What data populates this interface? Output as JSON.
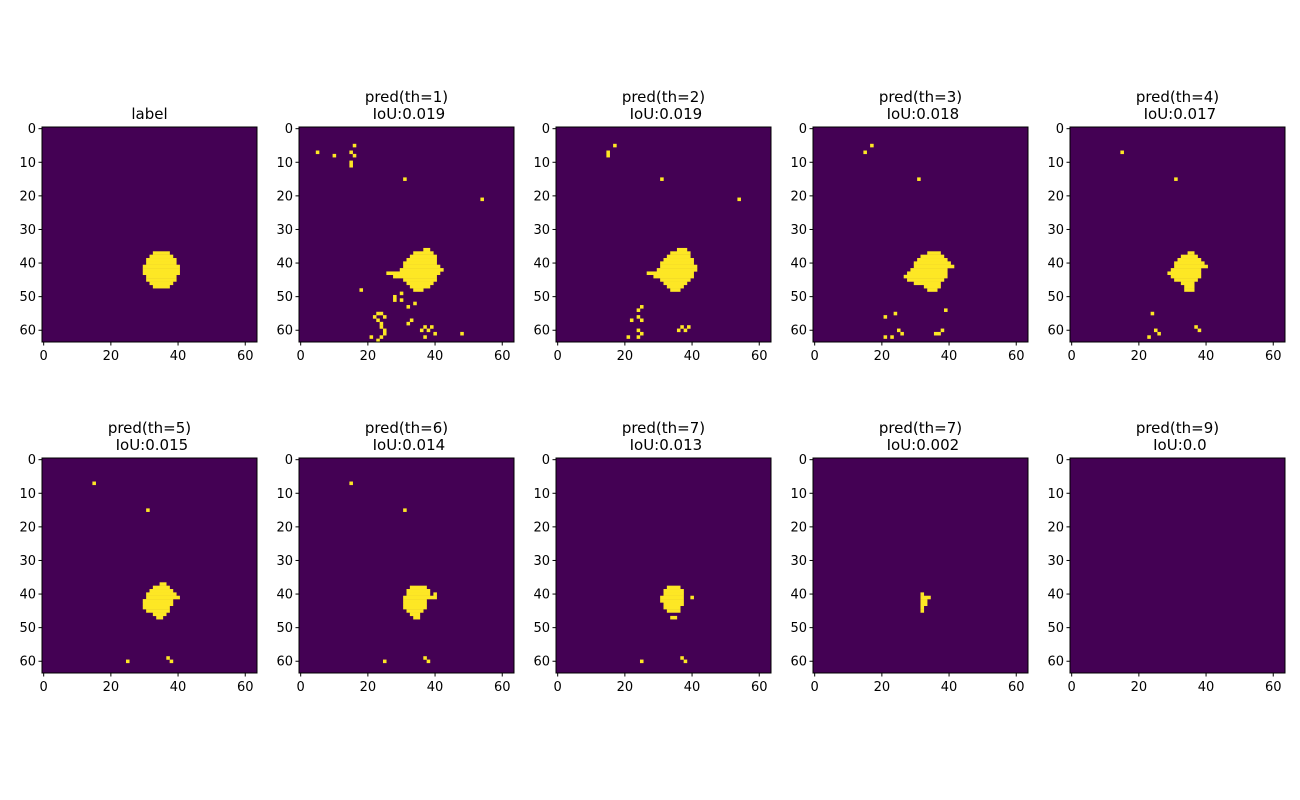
{
  "figure": {
    "colors": {
      "background": "#440154",
      "foreground": "#fde725",
      "frame": "#000000",
      "text": "#000000"
    }
  },
  "chart_data": [
    {
      "type": "heatmap",
      "title": "label",
      "x_ticks": [
        0,
        20,
        40,
        60
      ],
      "y_ticks": [
        0,
        10,
        20,
        30,
        40,
        50,
        60
      ],
      "xlim": [
        -0.5,
        63.5
      ],
      "ylim": [
        63.5,
        -0.5
      ],
      "grid": false,
      "values": {
        "blob": [
          [
            37,
            33,
            37
          ],
          [
            38,
            32,
            38
          ],
          [
            39,
            31,
            39
          ],
          [
            40,
            31,
            39
          ],
          [
            41,
            30,
            40
          ],
          [
            42,
            30,
            40
          ],
          [
            43,
            30,
            40
          ],
          [
            44,
            31,
            39
          ],
          [
            45,
            31,
            39
          ],
          [
            46,
            32,
            38
          ],
          [
            47,
            33,
            37
          ]
        ],
        "points": []
      }
    },
    {
      "type": "heatmap",
      "title": "pred(th=1)\n IoU:0.019",
      "x_ticks": [
        0,
        20,
        40,
        60
      ],
      "y_ticks": [
        0,
        10,
        20,
        30,
        40,
        50,
        60
      ],
      "xlim": [
        -0.5,
        63.5
      ],
      "ylim": [
        63.5,
        -0.5
      ],
      "grid": false,
      "values": {
        "blob": [
          [
            36,
            37,
            38
          ],
          [
            37,
            34,
            39
          ],
          [
            38,
            33,
            40
          ],
          [
            39,
            32,
            40
          ],
          [
            40,
            31,
            40
          ],
          [
            41,
            31,
            41
          ],
          [
            42,
            30,
            42
          ],
          [
            43,
            26,
            41
          ],
          [
            44,
            29,
            40
          ],
          [
            45,
            31,
            40
          ],
          [
            46,
            32,
            39
          ],
          [
            47,
            33,
            38
          ],
          [
            48,
            34,
            36
          ]
        ],
        "points": [
          [
            5,
            16
          ],
          [
            7,
            5
          ],
          [
            7,
            15
          ],
          [
            8,
            10
          ],
          [
            8,
            16
          ],
          [
            10,
            15
          ],
          [
            11,
            15
          ],
          [
            15,
            31
          ],
          [
            21,
            54
          ],
          [
            44,
            28
          ],
          [
            48,
            18
          ],
          [
            49,
            30
          ],
          [
            50,
            28
          ],
          [
            51,
            28
          ],
          [
            51,
            30
          ],
          [
            52,
            34
          ],
          [
            53,
            32
          ],
          [
            55,
            23
          ],
          [
            55,
            24
          ],
          [
            56,
            22
          ],
          [
            56,
            25
          ],
          [
            57,
            23
          ],
          [
            57,
            33
          ],
          [
            58,
            24
          ],
          [
            58,
            32
          ],
          [
            59,
            24
          ],
          [
            59,
            37
          ],
          [
            59,
            39
          ],
          [
            60,
            25
          ],
          [
            60,
            36
          ],
          [
            60,
            38
          ],
          [
            61,
            25
          ],
          [
            61,
            40
          ],
          [
            61,
            48
          ],
          [
            62,
            21
          ],
          [
            62,
            24
          ],
          [
            62,
            37
          ],
          [
            63,
            23
          ]
        ]
      }
    },
    {
      "type": "heatmap",
      "title": "pred(th=2)\n IoU:0.019",
      "x_ticks": [
        0,
        20,
        40,
        60
      ],
      "y_ticks": [
        0,
        10,
        20,
        30,
        40,
        50,
        60
      ],
      "xlim": [
        -0.5,
        63.5
      ],
      "ylim": [
        63.5,
        -0.5
      ],
      "grid": false,
      "values": {
        "blob": [
          [
            36,
            36,
            38
          ],
          [
            37,
            34,
            39
          ],
          [
            38,
            33,
            39
          ],
          [
            39,
            32,
            40
          ],
          [
            40,
            31,
            40
          ],
          [
            41,
            31,
            41
          ],
          [
            42,
            30,
            41
          ],
          [
            43,
            27,
            40
          ],
          [
            44,
            29,
            40
          ],
          [
            45,
            31,
            39
          ],
          [
            46,
            32,
            38
          ],
          [
            47,
            33,
            37
          ],
          [
            48,
            34,
            36
          ]
        ],
        "points": [
          [
            5,
            17
          ],
          [
            7,
            15
          ],
          [
            8,
            15
          ],
          [
            15,
            31
          ],
          [
            21,
            54
          ],
          [
            53,
            25
          ],
          [
            54,
            24
          ],
          [
            56,
            24
          ],
          [
            57,
            22
          ],
          [
            57,
            25
          ],
          [
            59,
            37
          ],
          [
            59,
            39
          ],
          [
            60,
            24
          ],
          [
            60,
            36
          ],
          [
            60,
            38
          ],
          [
            61,
            25
          ],
          [
            62,
            21
          ],
          [
            62,
            24
          ]
        ]
      }
    },
    {
      "type": "heatmap",
      "title": "pred(th=3)\n IoU:0.018",
      "x_ticks": [
        0,
        20,
        40,
        60
      ],
      "y_ticks": [
        0,
        10,
        20,
        30,
        40,
        50,
        60
      ],
      "xlim": [
        -0.5,
        63.5
      ],
      "ylim": [
        63.5,
        -0.5
      ],
      "grid": false,
      "values": {
        "blob": [
          [
            37,
            34,
            37
          ],
          [
            38,
            32,
            38
          ],
          [
            39,
            31,
            39
          ],
          [
            40,
            30,
            40
          ],
          [
            41,
            30,
            41
          ],
          [
            42,
            29,
            39
          ],
          [
            43,
            28,
            39
          ],
          [
            44,
            27,
            39
          ],
          [
            45,
            28,
            38
          ],
          [
            46,
            30,
            37
          ],
          [
            47,
            33,
            37
          ],
          [
            48,
            34,
            36
          ]
        ],
        "points": [
          [
            5,
            17
          ],
          [
            7,
            15
          ],
          [
            15,
            31
          ],
          [
            54,
            39
          ],
          [
            55,
            24
          ],
          [
            56,
            21
          ],
          [
            60,
            25
          ],
          [
            60,
            38
          ],
          [
            61,
            26
          ],
          [
            61,
            36
          ],
          [
            61,
            37
          ],
          [
            62,
            21
          ],
          [
            62,
            23
          ]
        ]
      }
    },
    {
      "type": "heatmap",
      "title": "pred(th=4)\n IoU:0.017",
      "x_ticks": [
        0,
        20,
        40,
        60
      ],
      "y_ticks": [
        0,
        10,
        20,
        30,
        40,
        50,
        60
      ],
      "xlim": [
        -0.5,
        63.5
      ],
      "ylim": [
        63.5,
        -0.5
      ],
      "grid": false,
      "values": {
        "blob": [
          [
            37,
            35,
            36
          ],
          [
            38,
            33,
            37
          ],
          [
            39,
            32,
            38
          ],
          [
            40,
            31,
            39
          ],
          [
            41,
            31,
            40
          ],
          [
            42,
            30,
            38
          ],
          [
            43,
            29,
            38
          ],
          [
            44,
            30,
            38
          ],
          [
            45,
            31,
            37
          ],
          [
            46,
            33,
            36
          ],
          [
            47,
            34,
            36
          ],
          [
            48,
            34,
            36
          ]
        ],
        "points": [
          [
            7,
            15
          ],
          [
            15,
            31
          ],
          [
            55,
            24
          ],
          [
            59,
            37
          ],
          [
            60,
            25
          ],
          [
            60,
            38
          ],
          [
            61,
            26
          ],
          [
            62,
            23
          ]
        ]
      }
    },
    {
      "type": "heatmap",
      "title": "pred(th=5)\n IoU:0.015",
      "x_ticks": [
        0,
        20,
        40,
        60
      ],
      "y_ticks": [
        0,
        10,
        20,
        30,
        40,
        50,
        60
      ],
      "xlim": [
        -0.5,
        63.5
      ],
      "ylim": [
        63.5,
        -0.5
      ],
      "grid": false,
      "values": {
        "blob": [
          [
            37,
            35,
            36
          ],
          [
            38,
            33,
            37
          ],
          [
            39,
            32,
            38
          ],
          [
            40,
            31,
            39
          ],
          [
            41,
            31,
            40
          ],
          [
            42,
            30,
            38
          ],
          [
            43,
            30,
            38
          ],
          [
            44,
            30,
            37
          ],
          [
            45,
            31,
            37
          ],
          [
            46,
            33,
            36
          ],
          [
            47,
            34,
            35
          ]
        ],
        "points": [
          [
            7,
            15
          ],
          [
            15,
            31
          ],
          [
            59,
            37
          ],
          [
            60,
            25
          ],
          [
            60,
            38
          ]
        ]
      }
    },
    {
      "type": "heatmap",
      "title": "pred(th=6)\n IoU:0.014",
      "x_ticks": [
        0,
        20,
        40,
        60
      ],
      "y_ticks": [
        0,
        10,
        20,
        30,
        40,
        50,
        60
      ],
      "xlim": [
        -0.5,
        63.5
      ],
      "ylim": [
        63.5,
        -0.5
      ],
      "grid": false,
      "values": {
        "blob": [
          [
            38,
            33,
            37
          ],
          [
            39,
            32,
            38
          ],
          [
            40,
            32,
            38
          ],
          [
            41,
            31,
            39
          ],
          [
            42,
            31,
            37
          ],
          [
            43,
            31,
            37
          ],
          [
            44,
            31,
            37
          ],
          [
            45,
            32,
            36
          ],
          [
            46,
            33,
            35
          ],
          [
            47,
            34,
            35
          ]
        ],
        "points": [
          [
            7,
            15
          ],
          [
            15,
            31
          ],
          [
            40,
            40
          ],
          [
            41,
            40
          ],
          [
            59,
            37
          ],
          [
            60,
            25
          ],
          [
            60,
            38
          ]
        ]
      }
    },
    {
      "type": "heatmap",
      "title": "pred(th=7)\n IoU:0.013",
      "x_ticks": [
        0,
        20,
        40,
        60
      ],
      "y_ticks": [
        0,
        10,
        20,
        30,
        40,
        50,
        60
      ],
      "xlim": [
        -0.5,
        63.5
      ],
      "ylim": [
        63.5,
        -0.5
      ],
      "grid": false,
      "values": {
        "blob": [
          [
            38,
            33,
            36
          ],
          [
            39,
            32,
            37
          ],
          [
            40,
            32,
            37
          ],
          [
            41,
            31,
            37
          ],
          [
            42,
            31,
            37
          ],
          [
            43,
            32,
            37
          ],
          [
            44,
            32,
            36
          ],
          [
            45,
            33,
            36
          ],
          [
            47,
            34,
            35
          ]
        ],
        "points": [
          [
            41,
            40
          ],
          [
            59,
            37
          ],
          [
            60,
            25
          ],
          [
            60,
            38
          ]
        ]
      }
    },
    {
      "type": "heatmap",
      "title": "pred(th=7)\n IoU:0.002",
      "x_ticks": [
        0,
        20,
        40,
        60
      ],
      "y_ticks": [
        0,
        10,
        20,
        30,
        40,
        50,
        60
      ],
      "xlim": [
        -0.5,
        63.5
      ],
      "ylim": [
        63.5,
        -0.5
      ],
      "grid": false,
      "values": {
        "blob": [
          [
            40,
            32,
            32
          ],
          [
            41,
            32,
            34
          ],
          [
            42,
            32,
            33
          ],
          [
            43,
            32,
            33
          ],
          [
            44,
            32,
            32
          ],
          [
            45,
            32,
            32
          ]
        ],
        "points": []
      }
    },
    {
      "type": "heatmap",
      "title": "pred(th=9)\n IoU:0.0",
      "x_ticks": [
        0,
        20,
        40,
        60
      ],
      "y_ticks": [
        0,
        10,
        20,
        30,
        40,
        50,
        60
      ],
      "xlim": [
        -0.5,
        63.5
      ],
      "ylim": [
        63.5,
        -0.5
      ],
      "grid": false,
      "values": {
        "blob": [],
        "points": []
      }
    }
  ]
}
